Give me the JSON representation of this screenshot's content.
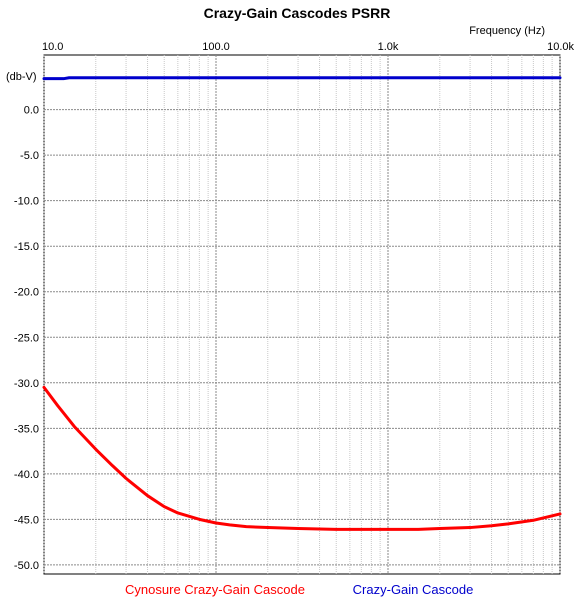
{
  "chart_data": {
    "type": "line",
    "title": "Crazy-Gain Cascodes PSRR",
    "xlabel": "Frequency    (Hz)",
    "ylabel": "(db-V)",
    "x_scale": "log",
    "xlim": [
      10,
      10000
    ],
    "ylim": [
      -51,
      6
    ],
    "x_ticks": [
      {
        "value": 10,
        "label": "10.0"
      },
      {
        "value": 100,
        "label": "100.0"
      },
      {
        "value": 1000,
        "label": "1.0k"
      },
      {
        "value": 10000,
        "label": "10.0k"
      }
    ],
    "y_ticks": [
      {
        "value": 0,
        "label": "0.0"
      },
      {
        "value": -5,
        "label": "-5.0"
      },
      {
        "value": -10,
        "label": "-10.0"
      },
      {
        "value": -15,
        "label": "-15.0"
      },
      {
        "value": -20,
        "label": "-20.0"
      },
      {
        "value": -25,
        "label": "-25.0"
      },
      {
        "value": -30,
        "label": "-30.0"
      },
      {
        "value": -35,
        "label": "-35.0"
      },
      {
        "value": -40,
        "label": "-40.0"
      },
      {
        "value": -45,
        "label": "-45.0"
      },
      {
        "value": -50,
        "label": "-50.0"
      }
    ],
    "grid": true,
    "legend_position": "bottom",
    "series": [
      {
        "name": "Cynosure Crazy-Gain Cascode",
        "color": "#ff0000",
        "x": [
          10,
          12,
          15,
          20,
          25,
          30,
          40,
          50,
          60,
          80,
          100,
          120,
          150,
          200,
          300,
          500,
          700,
          1000,
          1500,
          2000,
          3000,
          4000,
          5000,
          7000,
          10000
        ],
        "y": [
          -30.5,
          -32.5,
          -34.8,
          -37.3,
          -39.1,
          -40.5,
          -42.4,
          -43.6,
          -44.3,
          -45.0,
          -45.4,
          -45.6,
          -45.8,
          -45.9,
          -46.0,
          -46.1,
          -46.1,
          -46.1,
          -46.1,
          -46.0,
          -45.9,
          -45.7,
          -45.5,
          -45.1,
          -44.4
        ]
      },
      {
        "name": "Crazy-Gain Cascode",
        "color": "#0000cc",
        "x": [
          10,
          13,
          14,
          100,
          1000,
          10000
        ],
        "y": [
          3.4,
          3.4,
          3.5,
          3.5,
          3.5,
          3.5
        ]
      }
    ]
  }
}
